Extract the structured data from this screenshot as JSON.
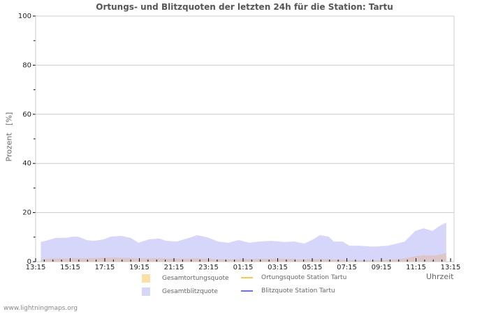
{
  "title": "Ortungs- und Blitzquoten der letzten 24h für die Station: Tartu",
  "footer": "www.lightningmaps.org",
  "colors": {
    "gesamtortung_fill": "#fbdfa6",
    "gesamtblitz_fill": "#d6d6fb",
    "overlap_fill": "#dcc6c6",
    "ortung_station_line": "#fbc84a",
    "blitz_station_line": "#7070e0",
    "grid": "#cccccc",
    "frame": "#cccccc"
  },
  "legend": [
    {
      "label": "Gesamtortungsquote",
      "type": "area",
      "color": "#fbdfa6"
    },
    {
      "label": "Ortungsquote Station Tartu",
      "type": "line",
      "color": "#fbc84a"
    },
    {
      "label": "Gesamtblitzquote",
      "type": "area",
      "color": "#d6d6fb"
    },
    {
      "label": "Blitzquote Station Tartu",
      "type": "line",
      "color": "#7070e0"
    }
  ],
  "chart_data": {
    "type": "area",
    "title": "Ortungs- und Blitzquoten der letzten 24h für die Station: Tartu",
    "xlabel": "Uhrzeit",
    "ylabel": "Prozent   [%]",
    "ylim": [
      0,
      100
    ],
    "yticks": [
      0,
      20,
      40,
      60,
      80,
      100
    ],
    "xtick_labels": [
      "13:15",
      "15:15",
      "17:15",
      "19:15",
      "21:15",
      "23:15",
      "01:15",
      "03:15",
      "05:15",
      "07:15",
      "09:15",
      "11:15",
      "13:15"
    ],
    "grid": true,
    "legend_position": "bottom",
    "x_hours": [
      0.3,
      0.75,
      1.15,
      1.75,
      2.15,
      2.45,
      2.95,
      3.35,
      3.95,
      4.35,
      4.95,
      5.5,
      5.95,
      6.55,
      7.15,
      7.55,
      8.15,
      8.75,
      9.35,
      9.95,
      10.55,
      11.15,
      11.75,
      12.35,
      12.95,
      13.65,
      14.35,
      14.95,
      15.55,
      16.05,
      16.45,
      16.95,
      17.25,
      17.75,
      18.15,
      18.75,
      19.35,
      19.75,
      20.35,
      20.75,
      21.35,
      21.95,
      22.45,
      22.95,
      23.35,
      23.75
    ],
    "series": [
      {
        "name": "Gesamtblitzquote",
        "values": [
          8.0,
          8.8,
          9.7,
          9.7,
          10.2,
          10.2,
          8.8,
          8.5,
          9.1,
          10.2,
          10.5,
          9.7,
          7.7,
          9.1,
          9.4,
          8.5,
          8.2,
          9.4,
          10.8,
          9.9,
          8.2,
          7.7,
          8.8,
          7.7,
          8.2,
          8.5,
          8.0,
          8.2,
          7.4,
          9.1,
          10.8,
          10.2,
          8.2,
          8.2,
          6.5,
          6.5,
          6.2,
          6.2,
          6.5,
          7.1,
          8.2,
          12.5,
          13.6,
          12.5,
          14.5,
          15.9
        ]
      },
      {
        "name": "Gesamtortungsquote",
        "values": [
          1.0,
          1.2,
          1.3,
          1.3,
          1.4,
          1.4,
          1.4,
          1.5,
          1.6,
          1.7,
          1.6,
          1.5,
          1.3,
          1.4,
          1.5,
          1.3,
          1.2,
          1.3,
          1.4,
          1.2,
          1.0,
          0.9,
          1.0,
          1.0,
          1.1,
          1.2,
          1.2,
          1.1,
          0.9,
          1.0,
          1.1,
          1.0,
          0.8,
          0.8,
          0.6,
          0.6,
          0.6,
          0.6,
          0.7,
          0.9,
          1.3,
          2.2,
          2.6,
          2.4,
          2.8,
          3.5
        ]
      },
      {
        "name": "Ortungsquote Station Tartu",
        "values": []
      },
      {
        "name": "Blitzquote Station Tartu",
        "values": []
      }
    ]
  }
}
